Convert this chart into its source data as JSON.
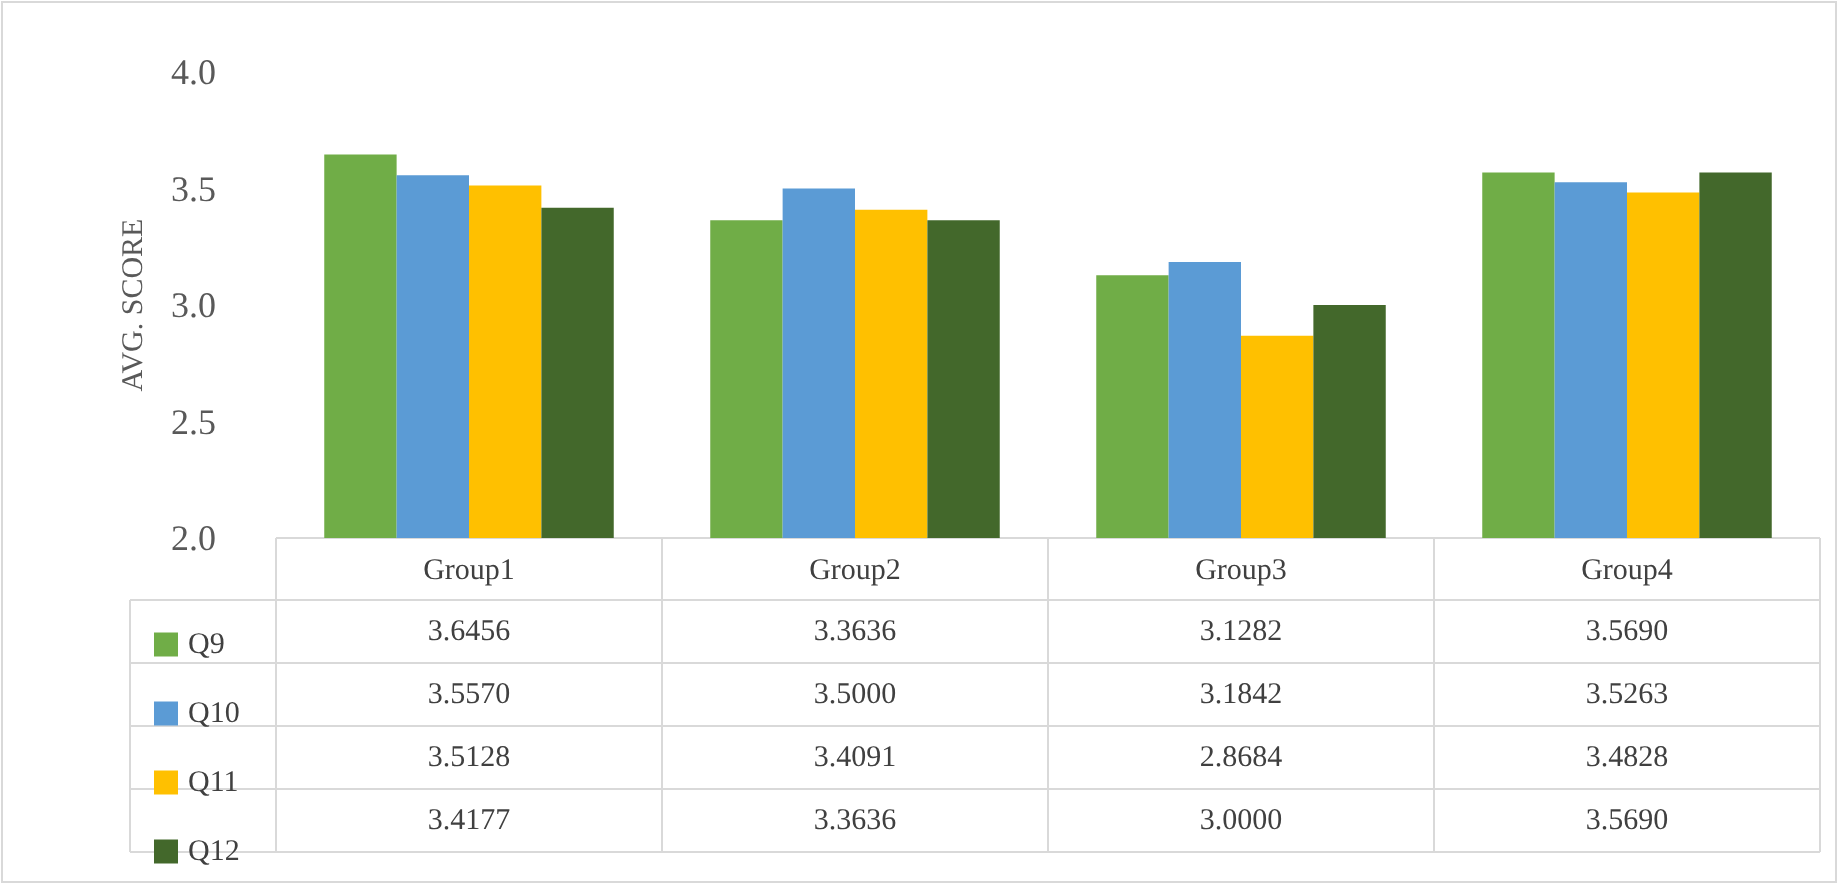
{
  "chart_data": {
    "type": "bar",
    "ylabel": "AVG. SCORE",
    "categories": [
      "Group1",
      "Group2",
      "Group3",
      "Group4"
    ],
    "series": [
      {
        "name": "Q9",
        "color": "#70ad47",
        "values": [
          3.6456,
          3.3636,
          3.1282,
          3.569
        ],
        "value_labels": [
          "3.6456",
          "3.3636",
          "3.1282",
          "3.5690"
        ]
      },
      {
        "name": "Q10",
        "color": "#5b9bd5",
        "values": [
          3.557,
          3.5,
          3.1842,
          3.5263
        ],
        "value_labels": [
          "3.5570",
          "3.5000",
          "3.1842",
          "3.5263"
        ]
      },
      {
        "name": "Q11",
        "color": "#ffc000",
        "values": [
          3.5128,
          3.4091,
          2.8684,
          3.4828
        ],
        "value_labels": [
          "3.5128",
          "3.4091",
          "2.8684",
          "3.4828"
        ]
      },
      {
        "name": "Q12",
        "color": "#43682b",
        "values": [
          3.4177,
          3.3636,
          3.0,
          3.569
        ],
        "value_labels": [
          "3.4177",
          "3.3636",
          "3.0000",
          "3.5690"
        ]
      }
    ],
    "ylim": [
      2,
      4
    ],
    "yticks": [
      {
        "value": 2,
        "label": "2.0"
      },
      {
        "value": 2.5,
        "label": "2.5"
      },
      {
        "value": 3,
        "label": "3.0"
      },
      {
        "value": 3.5,
        "label": "3.5"
      },
      {
        "value": 4,
        "label": "4.0"
      }
    ],
    "grid": false,
    "legend": "bottom"
  }
}
